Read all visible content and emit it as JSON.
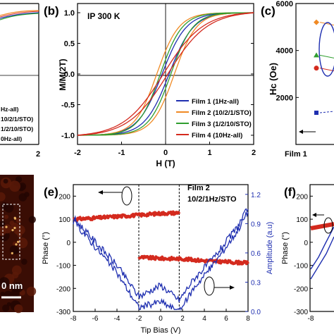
{
  "colors": {
    "blue": "#1f2fb0",
    "red": "#d42a1e",
    "orange": "#f08a24",
    "green": "#2f9e2f",
    "black": "#000000"
  },
  "panels": {
    "a": {
      "ticks_x": [
        "2"
      ],
      "legend": [
        "Hz-all)",
        "10/2/1/STO)",
        "1/2/10/STO)",
        "0Hz-all)"
      ]
    },
    "b": {
      "label": "(b)",
      "text": "IP 300 K",
      "xlabel": "H (T)",
      "ylabel": "M/M(2T)",
      "xticks": [
        "-2",
        "-1",
        "0",
        "1",
        "2"
      ],
      "yticks": [
        "1.0",
        "0.5",
        "0.0",
        "-0.5",
        "-1.0"
      ]
    },
    "c": {
      "label": "(c)",
      "ylabel": "Hc (Oe)",
      "yticks": [
        "6000",
        "4000",
        "2000"
      ],
      "xtick": "Film 1"
    },
    "d": {
      "scale": "0 nm"
    },
    "e": {
      "label": "(e)",
      "film": "Film 2",
      "sub": "10/2/1Hz/STO",
      "xlabel": "Tip Bias (V)",
      "ylabel_left": "Phase (°)",
      "ylabel_right": "Amplitude (a.u)",
      "xticks": [
        "-8",
        "-6",
        "-4",
        "-2",
        "0",
        "2",
        "4",
        "6",
        "8"
      ],
      "yticks_left": [
        "200",
        "100",
        "0",
        "-100",
        "-200",
        "-300"
      ],
      "yticks_right": [
        "1.2",
        "0.9",
        "0.6",
        "0.3",
        "0.0"
      ]
    },
    "f": {
      "label": "(f)",
      "ylabel": "Phase (°)",
      "yticks": [
        "200",
        "100",
        "0",
        "-100",
        "-200",
        "-300"
      ],
      "xtick": "-8"
    }
  },
  "chart_data": [
    {
      "panel": "b",
      "type": "line",
      "xlabel": "H (T)",
      "ylabel": "M/M(2T)",
      "xlim": [
        -2,
        2
      ],
      "ylim": [
        -1.15,
        1.15
      ],
      "series": [
        {
          "name": "Film 1 (1Hz-all)",
          "color": "#1f2fb0",
          "coercive_T": 0.08,
          "sat_width": 0.55
        },
        {
          "name": "Film 2 (10/2/1/STO)",
          "color": "#f08a24",
          "coercive_T": 0.2,
          "sat_width": 0.5
        },
        {
          "name": "Film 3 (1/2/10/STO)",
          "color": "#2f9e2f",
          "coercive_T": 0.12,
          "sat_width": 0.5
        },
        {
          "name": "Film 4 (10Hz-all)",
          "color": "#d42a1e",
          "coercive_T": 0.05,
          "sat_width": 0.9
        }
      ]
    },
    {
      "panel": "c",
      "type": "scatter",
      "ylabel": "Hc (Oe)",
      "ylim": [
        0,
        6000
      ],
      "points": [
        {
          "y": 5200,
          "color": "#f08a24",
          "marker": "diamond"
        },
        {
          "y": 3800,
          "color": "#2f9e2f",
          "marker": "triangle"
        },
        {
          "y": 3250,
          "color": "#d42a1e",
          "marker": "circle"
        },
        {
          "y": 1350,
          "color": "#1f2fb0",
          "marker": "square"
        }
      ]
    },
    {
      "panel": "e",
      "type": "line",
      "xlabel": "Tip Bias (V)",
      "ylabel": "Phase (°)",
      "ylabel_right": "Amplitude (a.u)",
      "xlim": [
        -8,
        8
      ],
      "ylim": [
        -300,
        250
      ],
      "ylim_right": [
        0,
        1.3
      ],
      "switch_voltages": [
        -2,
        1.7
      ],
      "series": [
        {
          "name": "Phase (upper branch)",
          "color": "#d42a1e",
          "x": [
            -8,
            -6,
            -4,
            -2,
            0,
            1.7
          ],
          "y": [
            100,
            105,
            112,
            118,
            125,
            128
          ]
        },
        {
          "name": "Phase (lower branch)",
          "color": "#d42a1e",
          "x": [
            -2,
            0,
            2,
            4,
            6,
            8
          ],
          "y": [
            -65,
            -70,
            -72,
            -80,
            -85,
            -90
          ]
        },
        {
          "name": "Amplitude",
          "color": "#1f2fb0",
          "axis": "right",
          "x": [
            -8,
            -6,
            -4,
            -2,
            0,
            1.7,
            3,
            5,
            7,
            8
          ],
          "y": [
            0.95,
            0.7,
            0.45,
            0.12,
            0.22,
            0.08,
            0.3,
            0.55,
            0.85,
            1.05
          ]
        }
      ]
    }
  ]
}
